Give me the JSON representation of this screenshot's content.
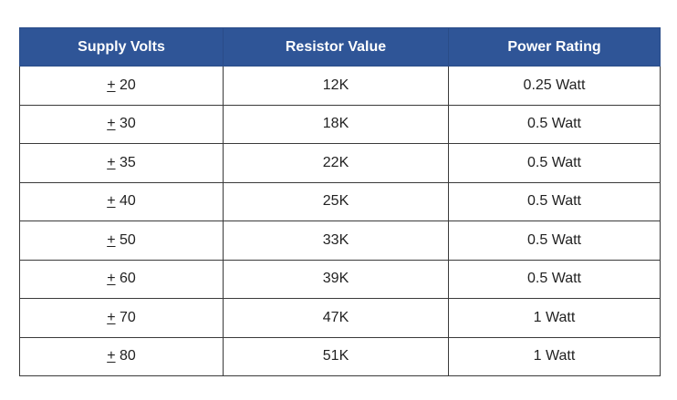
{
  "table": {
    "headers": [
      "Supply Volts",
      "Resistor Value",
      "Power Rating"
    ],
    "rows": [
      {
        "sign": "+",
        "volts": "20",
        "resistor": "12K",
        "power": "0.25 Watt"
      },
      {
        "sign": "+",
        "volts": "30",
        "resistor": "18K",
        "power": "0.5 Watt"
      },
      {
        "sign": "+",
        "volts": "35",
        "resistor": "22K",
        "power": "0.5 Watt"
      },
      {
        "sign": "+",
        "volts": "40",
        "resistor": "25K",
        "power": "0.5 Watt"
      },
      {
        "sign": "+",
        "volts": "50",
        "resistor": "33K",
        "power": "0.5 Watt"
      },
      {
        "sign": "+",
        "volts": "60",
        "resistor": "39K",
        "power": "0.5 Watt"
      },
      {
        "sign": "+",
        "volts": "70",
        "resistor": "47K",
        "power": "1 Watt"
      },
      {
        "sign": "+",
        "volts": "80",
        "resistor": "51K",
        "power": "1 Watt"
      }
    ]
  },
  "colors": {
    "header_bg": "#2f5597",
    "header_text": "#ffffff",
    "cell_text": "#222222",
    "border": "#3a3a3a"
  }
}
